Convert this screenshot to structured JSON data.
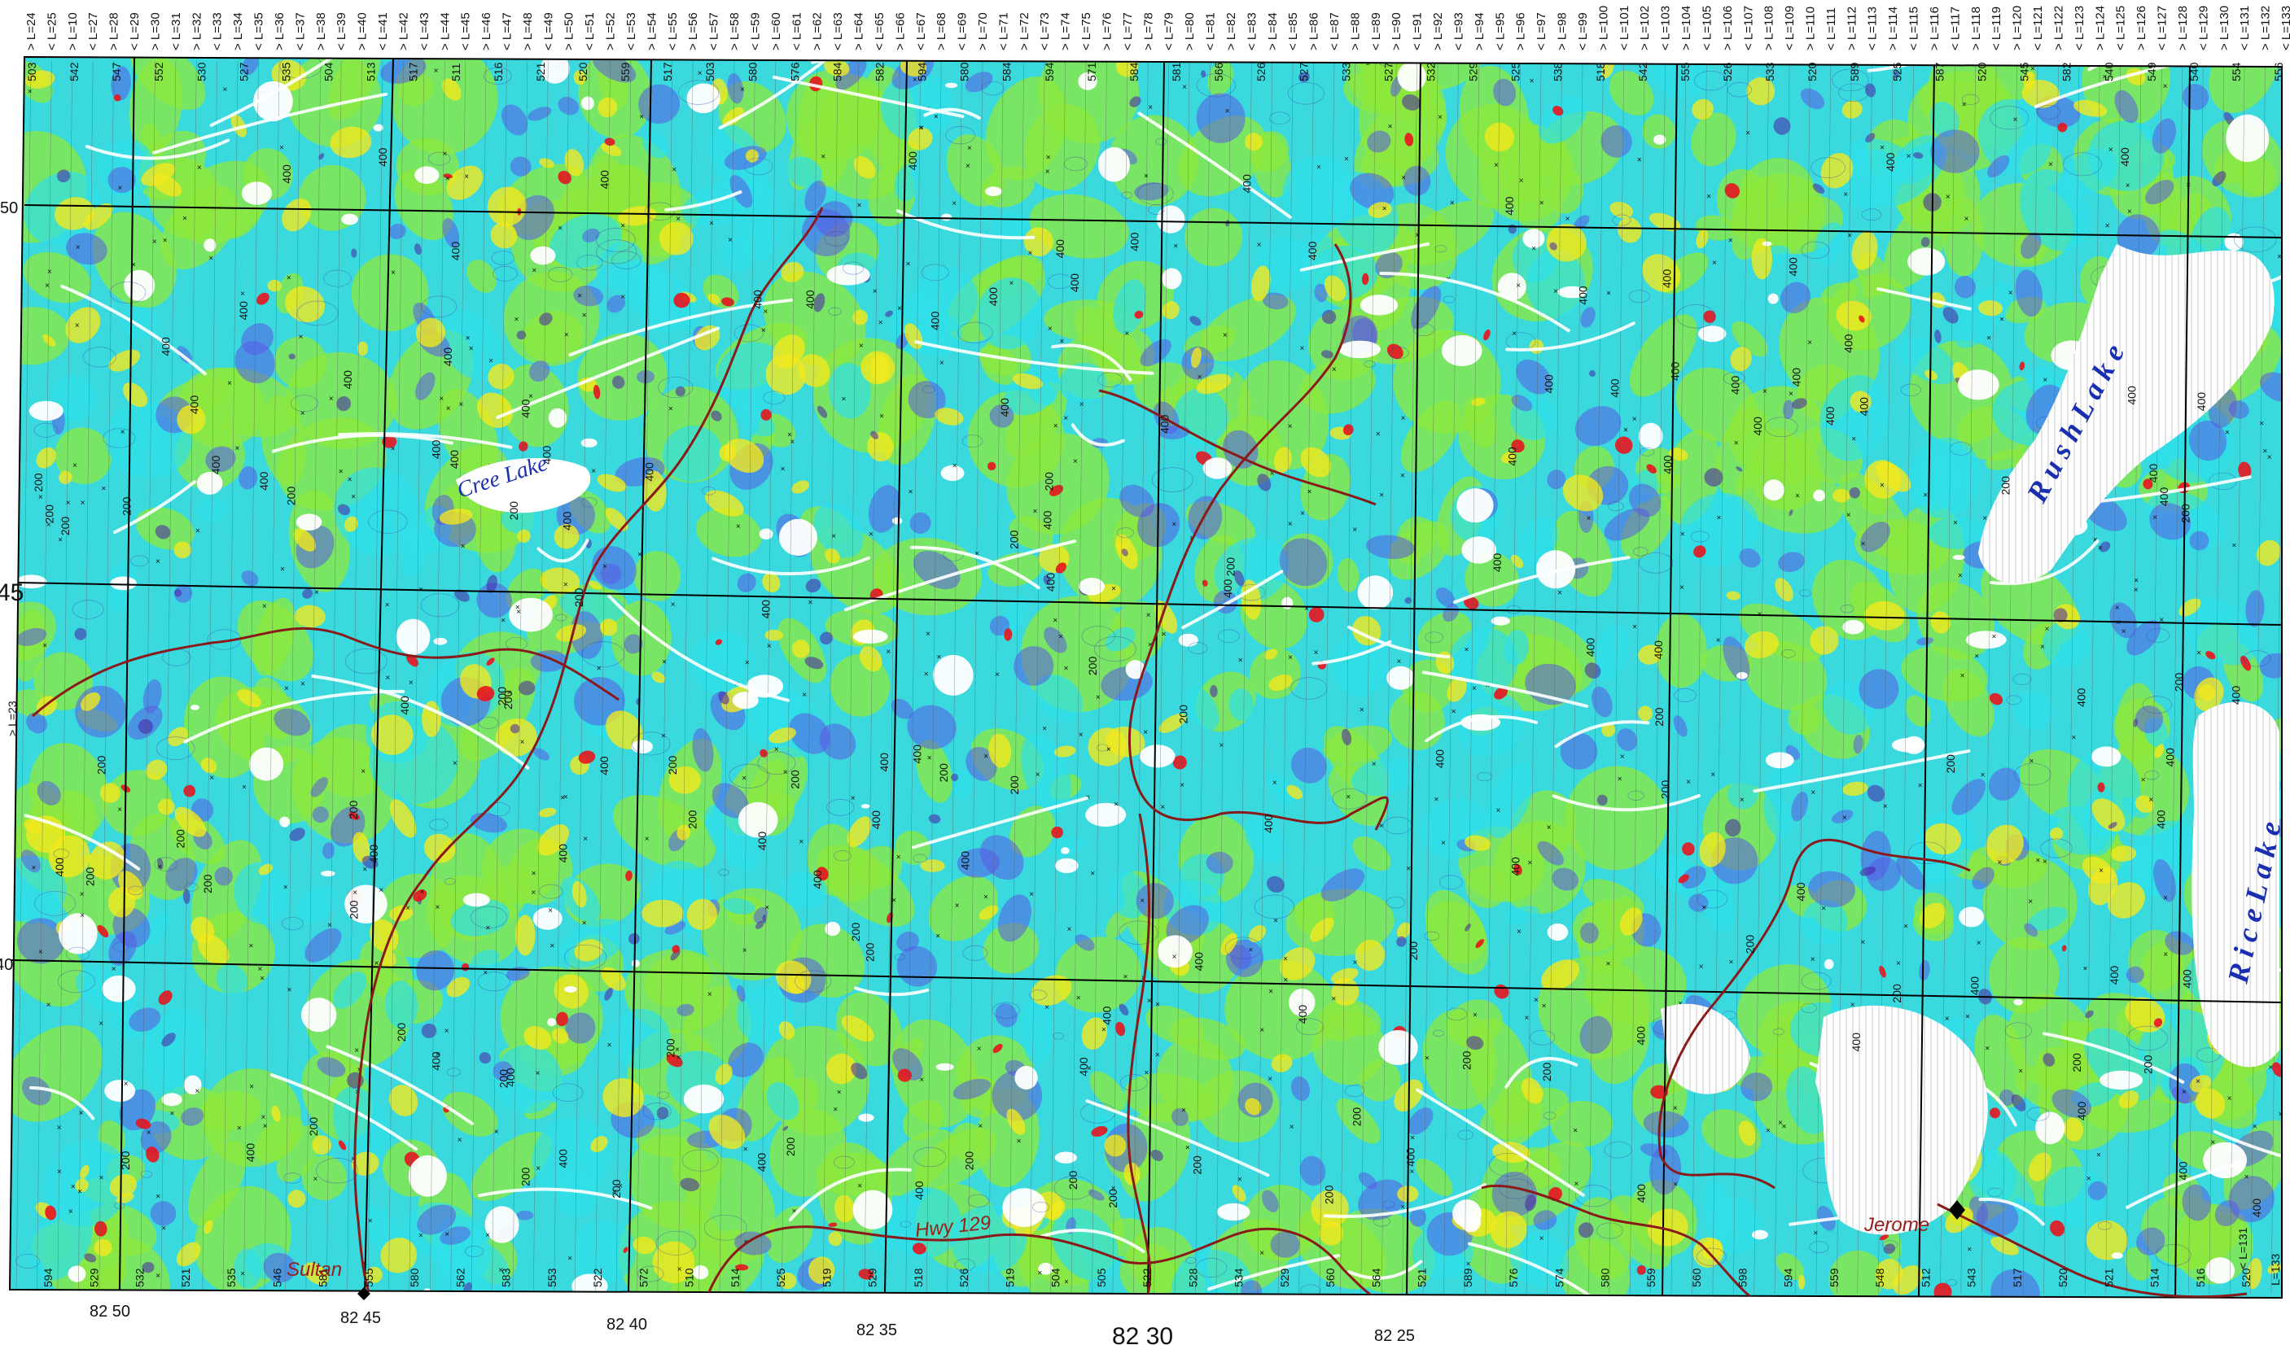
{
  "map": {
    "flight_lines_top": [
      "L-24",
      "L-25",
      "L-10",
      "L-27",
      "L-28",
      "L-29",
      "L-30",
      "L-31",
      "L-32",
      "L-33",
      "L-34",
      "L-35",
      "L-36",
      "L-37",
      "L-38",
      "L-39",
      "L-40",
      "L-41",
      "L-42",
      "L-43",
      "L-44",
      "L-45",
      "L-46",
      "L-47",
      "L-48",
      "L-49",
      "L-50",
      "L-51",
      "L-52",
      "L-53",
      "L-54",
      "L-55",
      "L-56",
      "L-57",
      "L-58",
      "L-59",
      "L-60",
      "L-61",
      "L-62",
      "L-63",
      "L-64",
      "L-65",
      "L-66",
      "L-67",
      "L-68",
      "L-69",
      "L-70",
      "L-71",
      "L-72",
      "L-73",
      "L-74",
      "L-75",
      "L-76",
      "L-77",
      "L-78",
      "L-79",
      "L-80",
      "L-81",
      "L-82",
      "L-83",
      "L-84",
      "L-85",
      "L-86",
      "L-87",
      "L-88",
      "L-89",
      "L-90",
      "L-91",
      "L-92",
      "L-93",
      "L-94",
      "L-95",
      "L-96",
      "L-97",
      "L-98",
      "L-99",
      "L-100",
      "L-101",
      "L-102",
      "L-103",
      "L-104",
      "L-105",
      "L-106",
      "L-107",
      "L-108",
      "L-109",
      "L-110",
      "L-111",
      "L-112",
      "L-113",
      "L-114",
      "L-115",
      "L-116",
      "L-117",
      "L-118",
      "L-119",
      "L-120",
      "L-121",
      "L-122",
      "L-123",
      "L-124",
      "L-125",
      "L-126",
      "L-127",
      "L-128",
      "L-129",
      "L-130",
      "L-131",
      "L-132",
      "L-133"
    ],
    "line_values_top": [
      "503",
      "542",
      "547",
      "552",
      "530",
      "527",
      "535",
      "504",
      "513",
      "517",
      "511",
      "516",
      "521",
      "520",
      "559",
      "517",
      "503",
      "580",
      "576",
      "584",
      "582",
      "594",
      "580",
      "584",
      "594",
      "571",
      "584",
      "581",
      "566",
      "526",
      "527",
      "533",
      "527",
      "532",
      "529",
      "525",
      "538",
      "518",
      "542",
      "555",
      "526",
      "533",
      "520",
      "589",
      "525",
      "587",
      "520",
      "545",
      "582",
      "540",
      "549",
      "540",
      "554",
      "556"
    ],
    "line_values_bottom": [
      "594",
      "529",
      "532",
      "521",
      "535",
      "546",
      "581",
      "555",
      "580",
      "562",
      "583",
      "553",
      "522",
      "572",
      "510",
      "514",
      "525",
      "519",
      "529",
      "518",
      "526",
      "519",
      "504",
      "505",
      "522",
      "528",
      "534",
      "529",
      "560",
      "564",
      "521",
      "589",
      "576",
      "574",
      "580",
      "559",
      "560",
      "598",
      "594",
      "559",
      "548",
      "512",
      "543",
      "517",
      "520",
      "521",
      "514",
      "516",
      "520"
    ],
    "left_edge_labels": [
      "50",
      "45",
      "40"
    ],
    "left_line_label": "> L=23",
    "right_line_labels": [
      "< L=131",
      "L=133"
    ],
    "longitude_labels": [
      "82 50",
      "82 45",
      "82 40",
      "82 35",
      "82 30",
      "82 25"
    ],
    "contour_labels": [
      "400",
      "200"
    ],
    "lakes": [
      {
        "name": "Cree Lake"
      },
      {
        "name": "R u s h   L a k e"
      },
      {
        "name": "R i c e   L a k e"
      }
    ],
    "places": [
      "Hwy 129",
      "Sultan",
      "Jerome"
    ],
    "colors": {
      "high": "#e8141e",
      "mid_high": "#f3e81e",
      "mid": "#8ee83c",
      "mid_low": "#2fe0e8",
      "low": "#5a5ae6",
      "lowest": "#4a1fa8",
      "road": "#8a1a1a",
      "grid": "#000000",
      "lineament": "#ffffff",
      "lake_label": "#1a2fb0"
    }
  }
}
